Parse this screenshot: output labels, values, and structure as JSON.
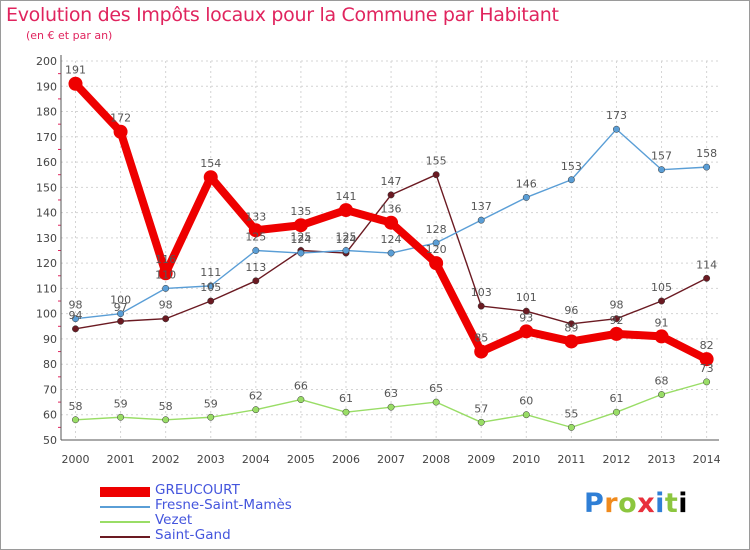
{
  "chart_data": {
    "type": "line",
    "title": "Evolution des Impôts locaux pour la Commune par Habitant",
    "subtitle": "(en € et par an)",
    "x": [
      "2000",
      "2001",
      "2002",
      "2003",
      "2004",
      "2005",
      "2006",
      "2007",
      "2008",
      "2009",
      "2010",
      "2011",
      "2012",
      "2013",
      "2014"
    ],
    "ylim": [
      50,
      200
    ],
    "yticks": [
      50,
      60,
      70,
      80,
      90,
      100,
      110,
      120,
      130,
      140,
      150,
      160,
      170,
      180,
      190,
      200
    ],
    "series": [
      {
        "name": "Saint-Gand",
        "color": "#6b1a22",
        "values": [
          94,
          97,
          98,
          105,
          113,
          125,
          124,
          147,
          155,
          103,
          101,
          96,
          98,
          105,
          114
        ],
        "labels": [
          "94",
          "97",
          "98",
          "105",
          "113",
          "125",
          "124",
          "147",
          "155",
          "103",
          "101",
          "96",
          "98",
          "105",
          "114"
        ]
      },
      {
        "name": "Vezet",
        "color": "#99dd66",
        "values": [
          58,
          59,
          58,
          59,
          62,
          66,
          61,
          63,
          65,
          57,
          60,
          55,
          61,
          68,
          73
        ],
        "labels": [
          "58",
          "59",
          "58",
          "59",
          "62",
          "66",
          "61",
          "63",
          "65",
          "57",
          "60",
          "55",
          "61",
          "68",
          "73"
        ]
      },
      {
        "name": "Fresne-Saint-Mamès",
        "color": "#5a9ed6",
        "values": [
          98,
          100,
          110,
          111,
          125,
          124,
          125,
          124,
          128,
          137,
          146,
          153,
          173,
          157,
          158
        ],
        "labels": [
          "98",
          "100",
          "110",
          "111",
          "125",
          "124",
          "125",
          "124",
          "128",
          "137",
          "146",
          "153",
          "173",
          "157",
          "158"
        ]
      },
      {
        "name": "GREUCOURT",
        "color": "#ee0000",
        "values": [
          191,
          172,
          116,
          154,
          133,
          135,
          141,
          136,
          120,
          85,
          93,
          89,
          92,
          91,
          82
        ],
        "labels": [
          "191",
          "172",
          "116",
          "154",
          "133",
          "135",
          "141",
          "136",
          "120",
          "85",
          "93",
          "89",
          "92",
          "91",
          "82"
        ]
      }
    ]
  },
  "legend": {
    "items": [
      {
        "label": "GREUCOURT",
        "color": "#ee0000"
      },
      {
        "label": "Fresne-Saint-Mamès",
        "color": "#5a9ed6"
      },
      {
        "label": "Vezet",
        "color": "#99dd66"
      },
      {
        "label": "Saint-Gand",
        "color": "#6b1a22"
      }
    ]
  },
  "logo": {
    "letters": [
      "P",
      "r",
      "o",
      "x",
      "i",
      "t",
      "i"
    ]
  }
}
